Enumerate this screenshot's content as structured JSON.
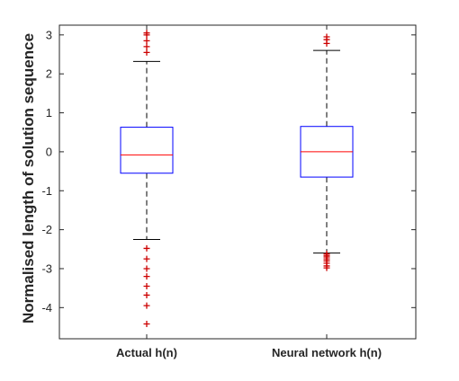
{
  "chart_data": {
    "type": "boxplot",
    "ylabel": "Normalised length of solution sequence",
    "ylim": [
      -4.8,
      3.25
    ],
    "yticks": [
      -4,
      -3,
      -2,
      -1,
      0,
      1,
      2,
      3
    ],
    "ytick_labels": [
      "-4",
      "-3",
      "-2",
      "-1",
      "0",
      "1",
      "2",
      "3"
    ],
    "categories": [
      "Actual h(n)",
      "Neural network h(n)"
    ],
    "series": [
      {
        "name": "Actual h(n)",
        "q1": -0.55,
        "median": -0.08,
        "q3": 0.63,
        "whisker_low": -2.25,
        "whisker_high": 2.32,
        "outliers": [
          2.55,
          2.7,
          2.85,
          3.0,
          3.05,
          -2.48,
          -2.75,
          -3.0,
          -3.2,
          -3.45,
          -3.68,
          -3.95,
          -4.42
        ]
      },
      {
        "name": "Neural network h(n)",
        "q1": -0.65,
        "median": 0.0,
        "q3": 0.65,
        "whisker_low": -2.6,
        "whisker_high": 2.6,
        "outliers": [
          2.78,
          2.88,
          2.95,
          -2.62,
          -2.66,
          -2.7,
          -2.75,
          -2.8,
          -2.86,
          -2.93,
          -2.98
        ]
      }
    ],
    "colors": {
      "box": "#0000ff",
      "median": "#ff0000",
      "whisker": "#000000",
      "outlier": "#cc0000",
      "axis": "#262626"
    },
    "grid": false,
    "legend": "none"
  }
}
